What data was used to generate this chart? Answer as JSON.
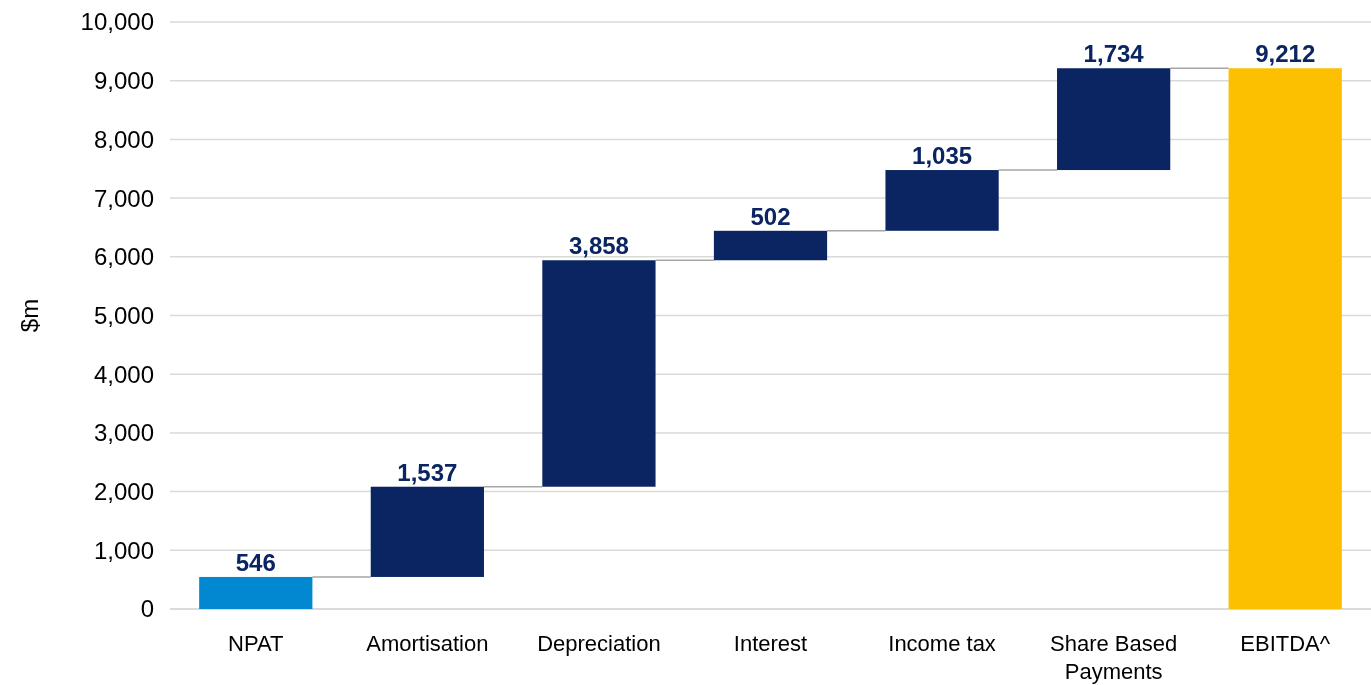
{
  "chart_data": {
    "type": "bar",
    "ylabel": "$m",
    "categories": [
      "NPAT",
      "Amortisation",
      "Depreciation",
      "Interest",
      "Income tax",
      "Share Based Payments",
      "EBITDA^"
    ],
    "values": [
      546,
      1537,
      3858,
      502,
      1035,
      1734,
      9212
    ],
    "base": [
      0,
      546,
      2083,
      5941,
      6443,
      7478,
      0
    ],
    "colors": [
      "#0288d1",
      "#0a2561",
      "#0a2561",
      "#0a2561",
      "#0a2561",
      "#0a2561",
      "#fcc000"
    ],
    "ylim": [
      0,
      10000
    ],
    "yticks": [
      0,
      {
        "value": 1000,
        "label": "1,000"
      },
      {
        "value": 2000,
        "label": "2,000"
      },
      {
        "value": 3000,
        "label": "3,000"
      },
      {
        "value": 4000,
        "label": "4,000"
      },
      {
        "value": 5000,
        "label": "5,000"
      },
      {
        "value": 6000,
        "label": "6,000"
      },
      {
        "value": 7000,
        "label": "7,000"
      },
      {
        "value": 8000,
        "label": "8,000"
      },
      {
        "value": 9000,
        "label": "9,000"
      },
      {
        "value": 10000,
        "label": "10,000"
      }
    ],
    "value_labels": [
      "546",
      "1,537",
      "3,858",
      "502",
      "1,035",
      "1,734",
      "9,212"
    ],
    "grid": "y"
  }
}
